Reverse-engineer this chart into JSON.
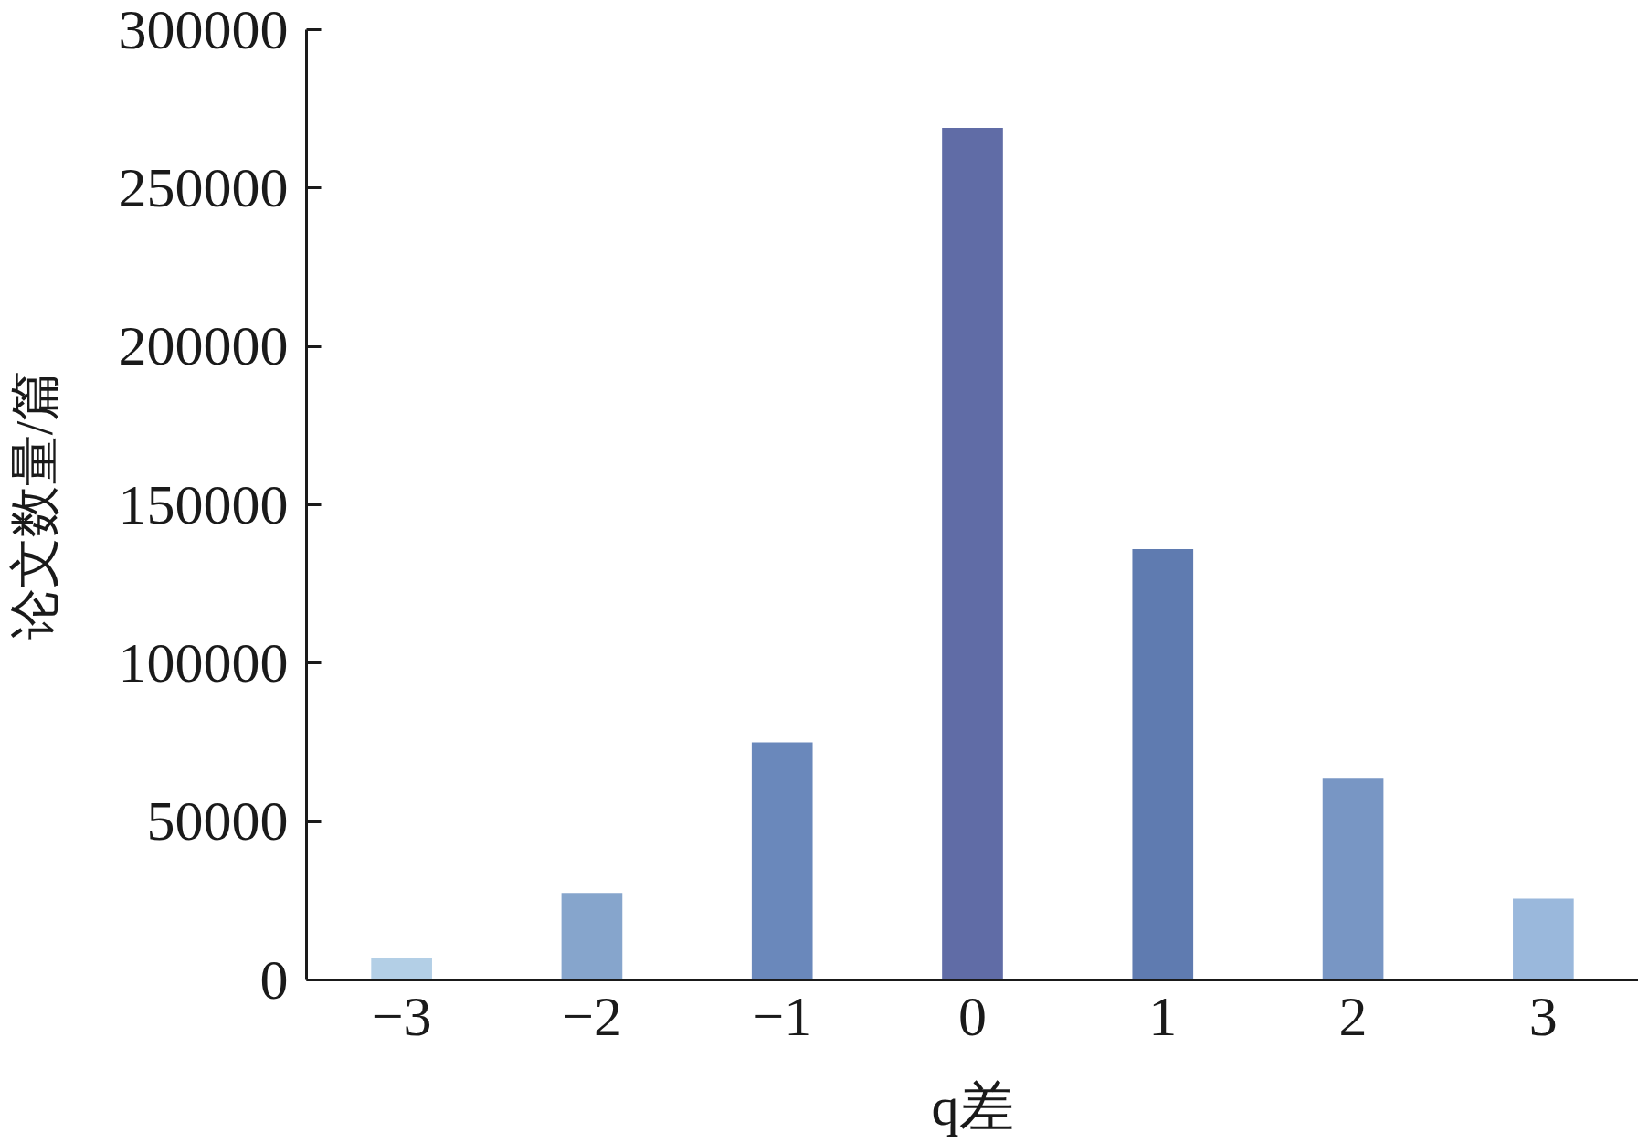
{
  "chart_data": {
    "type": "bar",
    "xlabel": "q差",
    "ylabel": "论文数量/篇",
    "categories": [
      "−3",
      "−2",
      "−1",
      "0",
      "1",
      "2",
      "3"
    ],
    "values": [
      7000,
      27500,
      75000,
      269000,
      136000,
      63500,
      25700
    ],
    "colors": [
      "#b3cfe6",
      "#86a5cc",
      "#6a88bb",
      "#606ca6",
      "#5f7bb0",
      "#7896c4",
      "#9ab8dc"
    ],
    "ylim": [
      0,
      300000
    ],
    "yticks": [
      0,
      50000,
      100000,
      150000,
      200000,
      250000,
      300000
    ]
  }
}
